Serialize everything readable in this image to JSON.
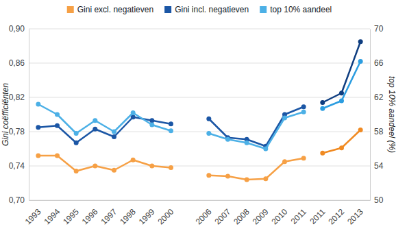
{
  "chart_data": {
    "type": "line",
    "categories": [
      "1993",
      "1994",
      "1995",
      "1996",
      "1997",
      "1998",
      "1999",
      "2000",
      null,
      "2006",
      "2007",
      "2008",
      "2009",
      "2010",
      "2011",
      "2011",
      "2012",
      "2013"
    ],
    "series": [
      {
        "name": "Gini excl. negatieven",
        "color": "#f6a045",
        "values": [
          0.752,
          0.752,
          0.734,
          0.74,
          0.735,
          0.747,
          0.74,
          0.738,
          null,
          0.729,
          0.728,
          0.724,
          0.725,
          0.745,
          0.749,
          null,
          null,
          null
        ]
      },
      {
        "name": "Gini incl. negatieven",
        "color": "#1b56a5",
        "values": [
          0.785,
          0.787,
          0.767,
          0.783,
          0.774,
          0.797,
          0.793,
          0.789,
          null,
          0.795,
          0.773,
          0.771,
          0.763,
          0.8,
          0.809,
          null,
          null,
          null
        ]
      },
      {
        "name": "top 10% aandeel",
        "color": "#4cb0e6",
        "axis": "y2",
        "values": [
          61.2,
          60.0,
          57.8,
          59.3,
          58.0,
          60.2,
          58.8,
          58.1,
          null,
          57.8,
          57.1,
          56.7,
          56.0,
          59.6,
          60.3,
          null,
          null,
          null
        ]
      },
      {
        "name": "Gini excl. negatieven",
        "color": "#f08a22",
        "values": [
          null,
          null,
          null,
          null,
          null,
          null,
          null,
          null,
          null,
          null,
          null,
          null,
          null,
          null,
          null,
          0.755,
          0.761,
          0.782
        ]
      },
      {
        "name": "Gini incl. negatieven",
        "color": "#0e3d80",
        "values": [
          null,
          null,
          null,
          null,
          null,
          null,
          null,
          null,
          null,
          null,
          null,
          null,
          null,
          null,
          null,
          0.814,
          0.825,
          0.885
        ]
      },
      {
        "name": "top 10% aandeel",
        "color": "#2c9de0",
        "axis": "y2",
        "values": [
          null,
          null,
          null,
          null,
          null,
          null,
          null,
          null,
          null,
          null,
          null,
          null,
          null,
          null,
          null,
          60.7,
          61.6,
          66.2
        ]
      }
    ],
    "ylim": [
      0.7,
      0.9
    ],
    "yticks": [
      {
        "value": 0.7,
        "label": "0,70"
      },
      {
        "value": 0.74,
        "label": "0,74"
      },
      {
        "value": 0.78,
        "label": "0,78"
      },
      {
        "value": 0.82,
        "label": "0,82"
      },
      {
        "value": 0.86,
        "label": "0,86"
      },
      {
        "value": 0.9,
        "label": "0,90"
      }
    ],
    "y2lim": [
      50,
      70
    ],
    "y2ticks": [
      50,
      54,
      58,
      62,
      66,
      70
    ],
    "y_label": "Gini coëfficiënten",
    "y2_label": "top 10% aandeel (%)",
    "grid": true,
    "legend": "top",
    "marker": "circle"
  }
}
